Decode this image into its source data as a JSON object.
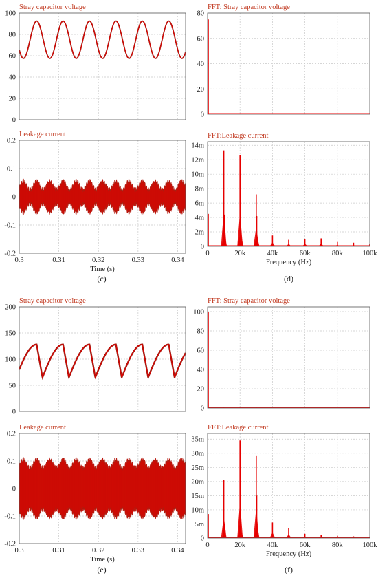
{
  "colors": {
    "trace": "#e60000",
    "trace_dark": "#9b1d12",
    "title": "#c23b22",
    "grid": "#c8c8c8",
    "axis": "#555555",
    "text": "#222222"
  },
  "caption_labels": {
    "c": "(c)",
    "d": "(d)",
    "e": "(e)",
    "f": "(f)"
  },
  "chart_data": [
    {
      "id": "c_top",
      "type": "line",
      "title": "Stray capacitor voltage",
      "xlim": [
        0.3,
        0.342
      ],
      "ylim": [
        0,
        100
      ],
      "y_ticks": [
        0,
        20,
        40,
        60,
        80,
        100
      ],
      "y_tick_labels": [
        "0",
        "20",
        "40",
        "60",
        "80",
        "100"
      ],
      "waveform": {
        "shape": "sine",
        "offset": 75,
        "amplitude": 17.5,
        "period_s": 0.00667,
        "peaks_s": [
          0.3044,
          0.3111,
          0.3178,
          0.3244,
          0.3311,
          0.3378
        ]
      },
      "grid": true
    },
    {
      "id": "c_bottom",
      "type": "line",
      "title": "Leakage current",
      "xlim": [
        0.3,
        0.342
      ],
      "ylim": [
        -0.2,
        0.2
      ],
      "y_ticks": [
        -0.2,
        -0.1,
        0,
        0.1,
        0.2
      ],
      "y_tick_labels": [
        "-0.2",
        "-0.1",
        "0",
        "0.1",
        "0.2"
      ],
      "x_ticks": [
        0.3,
        0.31,
        0.32,
        0.33,
        0.34
      ],
      "x_tick_labels": [
        "0.3",
        "0.31",
        "0.32",
        "0.33",
        "0.34"
      ],
      "xlabel": "Time (s)",
      "waveform": {
        "shape": "pwm_ripple",
        "envelope_max": 0.055,
        "envelope_min": 0.025,
        "period_s": 0.00333
      },
      "grid": true
    },
    {
      "id": "d_top",
      "type": "bar",
      "title": "FFT: Stray capacitor voltage",
      "xlim": [
        0,
        100000
      ],
      "ylim": [
        0,
        80
      ],
      "y_ticks": [
        0,
        20,
        40,
        60,
        80
      ],
      "y_tick_labels": [
        "0",
        "20",
        "40",
        "60",
        "80"
      ],
      "x": [
        0,
        150,
        300,
        10000,
        20000,
        30000
      ],
      "values": [
        75,
        20,
        3,
        0.6,
        0.5,
        0.3
      ],
      "grid": true
    },
    {
      "id": "d_bottom",
      "type": "bar",
      "title": "FFT:Leakage current",
      "xlim": [
        0,
        100000
      ],
      "ylim": [
        0,
        0.0145
      ],
      "y_ticks": [
        0,
        0.002,
        0.004,
        0.006,
        0.008,
        0.01,
        0.012,
        0.014
      ],
      "y_tick_labels": [
        "0",
        "2m",
        "4m",
        "6m",
        "8m",
        "10m",
        "12m",
        "14m"
      ],
      "x_ticks": [
        0,
        20000,
        40000,
        60000,
        80000,
        100000
      ],
      "x_tick_labels": [
        "0",
        "20k",
        "40k",
        "60k",
        "80k",
        "100k"
      ],
      "xlabel": "Frequency (Hz)",
      "x": [
        0,
        150,
        9700,
        10000,
        10300,
        19700,
        20000,
        20300,
        29700,
        30000,
        30300,
        40000,
        50000,
        60000,
        70000,
        80000,
        90000,
        100000
      ],
      "values": [
        0.0045,
        0.002,
        0.0012,
        0.0133,
        0.0044,
        0.0012,
        0.0126,
        0.0057,
        0.0005,
        0.0072,
        0.0042,
        0.0015,
        0.0009,
        0.001,
        0.0011,
        0.0006,
        0.0005,
        0.0003
      ],
      "grid": true
    },
    {
      "id": "e_top",
      "type": "line",
      "title": "Stray capacitor voltage",
      "xlim": [
        0.3,
        0.342
      ],
      "ylim": [
        0,
        200
      ],
      "y_ticks": [
        0,
        50,
        100,
        150,
        200
      ],
      "y_tick_labels": [
        "0",
        "50",
        "100",
        "150",
        "200"
      ],
      "waveform": {
        "shape": "sawtooth",
        "min": 65,
        "max": 128,
        "period_s": 0.00667,
        "peaks_s": [
          0.3044,
          0.3111,
          0.3178,
          0.3244,
          0.3311,
          0.3378
        ]
      },
      "grid": true
    },
    {
      "id": "e_bottom",
      "type": "line",
      "title": "Leakage current",
      "xlim": [
        0.3,
        0.342
      ],
      "ylim": [
        -0.2,
        0.2
      ],
      "y_ticks": [
        -0.2,
        -0.1,
        0,
        0.1,
        0.2
      ],
      "y_tick_labels": [
        "-0.2",
        "-0.1",
        "0",
        "0.1",
        "0.2"
      ],
      "x_ticks": [
        0.3,
        0.31,
        0.32,
        0.33,
        0.34
      ],
      "x_tick_labels": [
        "0.3",
        "0.31",
        "0.32",
        "0.33",
        "0.34"
      ],
      "xlabel": "Time (s)",
      "waveform": {
        "shape": "pwm_ripple",
        "envelope_max": 0.105,
        "envelope_min": 0.075,
        "period_s": 0.00333
      },
      "grid": true
    },
    {
      "id": "f_top",
      "type": "bar",
      "title": "FFT: Stray capacitor voltage",
      "xlim": [
        0,
        100000
      ],
      "ylim": [
        0,
        105
      ],
      "y_ticks": [
        0,
        20,
        40,
        60,
        80,
        100
      ],
      "y_tick_labels": [
        "0",
        "20",
        "40",
        "60",
        "80",
        "100"
      ],
      "x": [
        0,
        150,
        300,
        10000,
        20000,
        30000
      ],
      "values": [
        100,
        32,
        6,
        0.8,
        0.6,
        0.4
      ],
      "grid": true
    },
    {
      "id": "f_bottom",
      "type": "bar",
      "title": "FFT:Leakage current",
      "xlim": [
        0,
        100000
      ],
      "ylim": [
        0,
        0.037
      ],
      "y_ticks": [
        0,
        0.005,
        0.01,
        0.015,
        0.02,
        0.025,
        0.03,
        0.035
      ],
      "y_tick_labels": [
        "0",
        "5m",
        "10m",
        "15m",
        "20m",
        "25m",
        "30m",
        "35m"
      ],
      "x_ticks": [
        0,
        20000,
        40000,
        60000,
        80000,
        100000
      ],
      "x_tick_labels": [
        "0",
        "20k",
        "40k",
        "60k",
        "80k",
        "100k"
      ],
      "xlabel": "Frequency (Hz)",
      "x": [
        0,
        150,
        9700,
        10000,
        10300,
        19700,
        20000,
        20300,
        29700,
        30000,
        30300,
        40000,
        50000,
        60000,
        70000,
        80000,
        90000,
        100000
      ],
      "values": [
        0.0085,
        0.003,
        0.002,
        0.0205,
        0.005,
        0.0045,
        0.0345,
        0.009,
        0.002,
        0.029,
        0.015,
        0.0055,
        0.0035,
        0.0015,
        0.0012,
        0.0008,
        0.0006,
        0.0004
      ],
      "grid": true
    }
  ]
}
